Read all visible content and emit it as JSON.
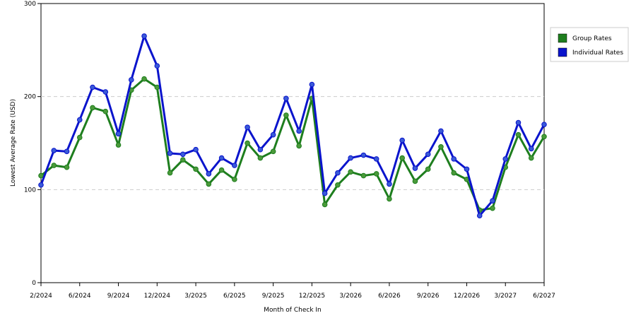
{
  "chart_data": {
    "type": "line",
    "x_label": "Month of Check In",
    "y_label": "Lowest Average Rate (USD)",
    "categories": [
      "2/2024",
      null,
      null,
      "6/2024",
      null,
      null,
      "9/2024",
      null,
      null,
      "12/2024",
      null,
      null,
      "3/2025",
      null,
      null,
      "6/2025",
      null,
      null,
      "9/2025",
      null,
      null,
      "12/2025",
      null,
      null,
      "3/2026",
      null,
      null,
      "6/2026",
      null,
      null,
      "9/2026",
      null,
      null,
      "12/2026",
      null,
      null,
      "3/2027",
      null,
      null,
      "6/2027"
    ],
    "series": [
      {
        "name": "Group Rates",
        "color": "#1e7e1e",
        "marker": "#4a9a3a",
        "values": [
          115,
          126,
          124,
          156,
          188,
          184,
          148,
          207,
          219,
          210,
          118,
          132,
          122,
          106,
          121,
          111,
          150,
          134,
          141,
          180,
          147,
          198,
          84,
          105,
          119,
          115,
          117,
          90,
          134,
          109,
          122,
          146,
          118,
          111,
          78,
          80,
          124,
          159,
          134,
          157
        ]
      },
      {
        "name": "Individual Rates",
        "color": "#0a14cc",
        "marker": "#3a5ad8",
        "values": [
          105,
          142,
          141,
          175,
          210,
          205,
          160,
          218,
          265,
          233,
          139,
          138,
          143,
          117,
          134,
          126,
          167,
          143,
          159,
          198,
          163,
          213,
          96,
          118,
          134,
          137,
          133,
          106,
          153,
          123,
          138,
          163,
          133,
          122,
          72,
          88,
          133,
          172,
          144,
          170
        ]
      }
    ],
    "ylim": [
      0,
      300
    ],
    "yticks": [
      0,
      100,
      200,
      300
    ],
    "grid": true,
    "legend": "right"
  }
}
